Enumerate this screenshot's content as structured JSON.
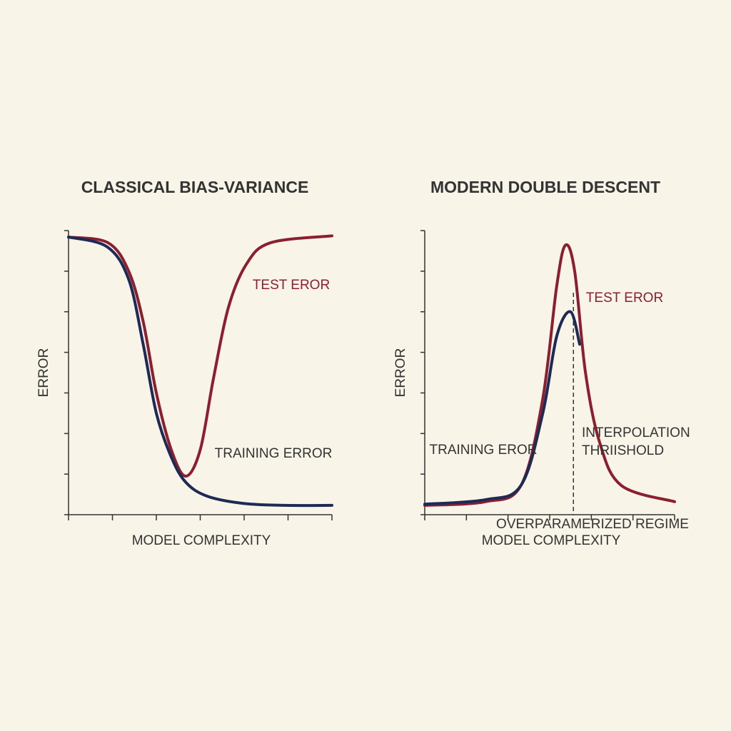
{
  "chart_data": [
    {
      "type": "line",
      "title": "CLASSICAL BIAS-VARIANCE",
      "x_label": "MODEL COMPLEXITY",
      "y_label": "ERROR",
      "xlim": [
        0,
        6
      ],
      "ylim": [
        0,
        7
      ],
      "xticks": [
        0,
        1,
        2,
        3,
        4,
        5,
        6
      ],
      "yticks": [
        0,
        1,
        2,
        3,
        4,
        5,
        6,
        7
      ],
      "series": [
        {
          "name": "TEST EROR",
          "color": "#8b1e2f",
          "x": [
            0,
            0.9,
            1.37,
            1.7,
            2.0,
            2.34,
            2.67,
            3.0,
            3.3,
            3.64,
            4.05,
            4.6,
            6
          ],
          "values": [
            6.84,
            6.7,
            6.0,
            4.76,
            3.0,
            1.6,
            0.95,
            1.6,
            3.35,
            5.1,
            6.17,
            6.7,
            6.87
          ]
        },
        {
          "name": "TRAINING ERROR",
          "color": "#1c2a55",
          "x": [
            0,
            0.88,
            1.37,
            1.7,
            2.0,
            2.34,
            2.67,
            3.15,
            3.97,
            4.94,
            6
          ],
          "values": [
            6.84,
            6.6,
            5.8,
            4.2,
            2.5,
            1.42,
            0.8,
            0.46,
            0.28,
            0.23,
            0.23
          ]
        }
      ]
    },
    {
      "type": "line",
      "title": "MODERN DOUBLE DESCENT",
      "x_label": "MODEL COMPLEXITY",
      "y_label": "ERROR",
      "xlim": [
        0,
        6
      ],
      "ylim": [
        0,
        7
      ],
      "xticks": [
        0,
        1,
        2,
        3,
        4,
        5,
        6
      ],
      "yticks": [
        0,
        1,
        2,
        3,
        4,
        5,
        6,
        7
      ],
      "threshold_x": 3.57,
      "threshold_label": [
        "INTERPOLATION",
        "THRIISHOLD"
      ],
      "regime_label": "OVERPARAMERIZED REGIME",
      "series": [
        {
          "name": "TEST EROR",
          "color": "#8b1e2f",
          "x": [
            0,
            1.46,
            2.31,
            2.83,
            3.17,
            3.38,
            3.6,
            3.86,
            4.2,
            4.72,
            6
          ],
          "values": [
            0.23,
            0.32,
            0.72,
            2.83,
            5.64,
            6.64,
            6.0,
            3.5,
            1.78,
            0.72,
            0.32
          ]
        },
        {
          "name": "TRAINING EROR",
          "color": "#1c2a55",
          "x": [
            0,
            1.46,
            2.31,
            2.83,
            3.17,
            3.5,
            3.72
          ],
          "values": [
            0.26,
            0.37,
            0.72,
            2.48,
            4.4,
            5.0,
            4.2
          ]
        }
      ]
    }
  ]
}
